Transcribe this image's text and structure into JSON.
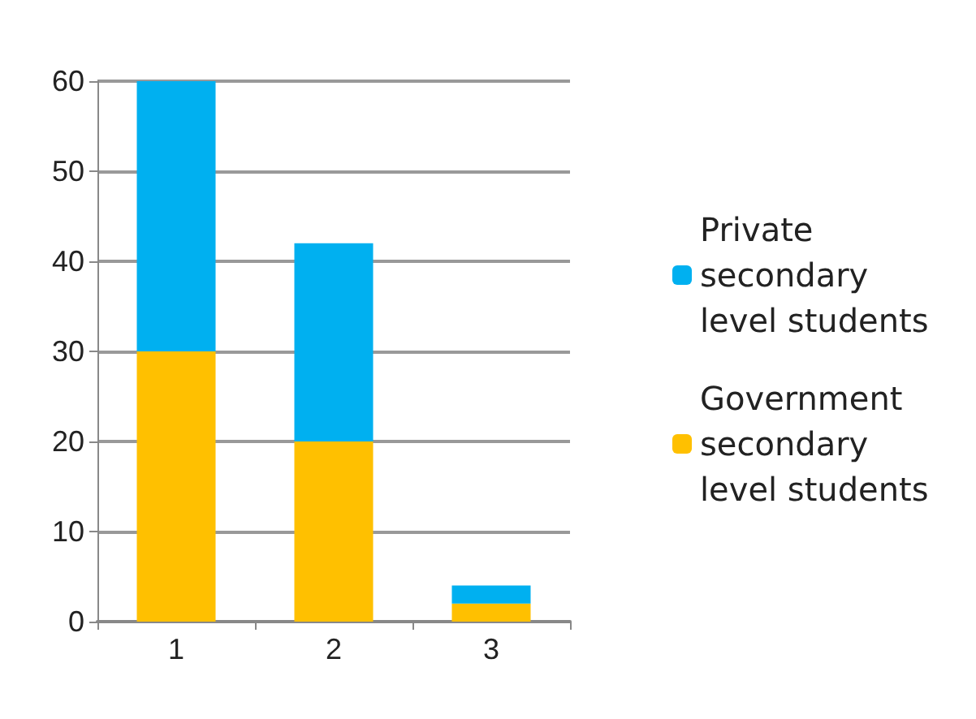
{
  "chart_data": {
    "type": "bar",
    "stacked": true,
    "categories": [
      "1",
      "2",
      "3"
    ],
    "series": [
      {
        "name": "Government secondary level students",
        "color": "#ffc000",
        "values": [
          30,
          20,
          2
        ]
      },
      {
        "name": "Private secondary level students",
        "color": "#00b0f0",
        "values": [
          30,
          22,
          2
        ]
      }
    ],
    "ylim": [
      0,
      60
    ],
    "yticks": [
      0,
      10,
      20,
      30,
      40,
      50,
      60
    ],
    "grid": "y",
    "legend": "right"
  }
}
